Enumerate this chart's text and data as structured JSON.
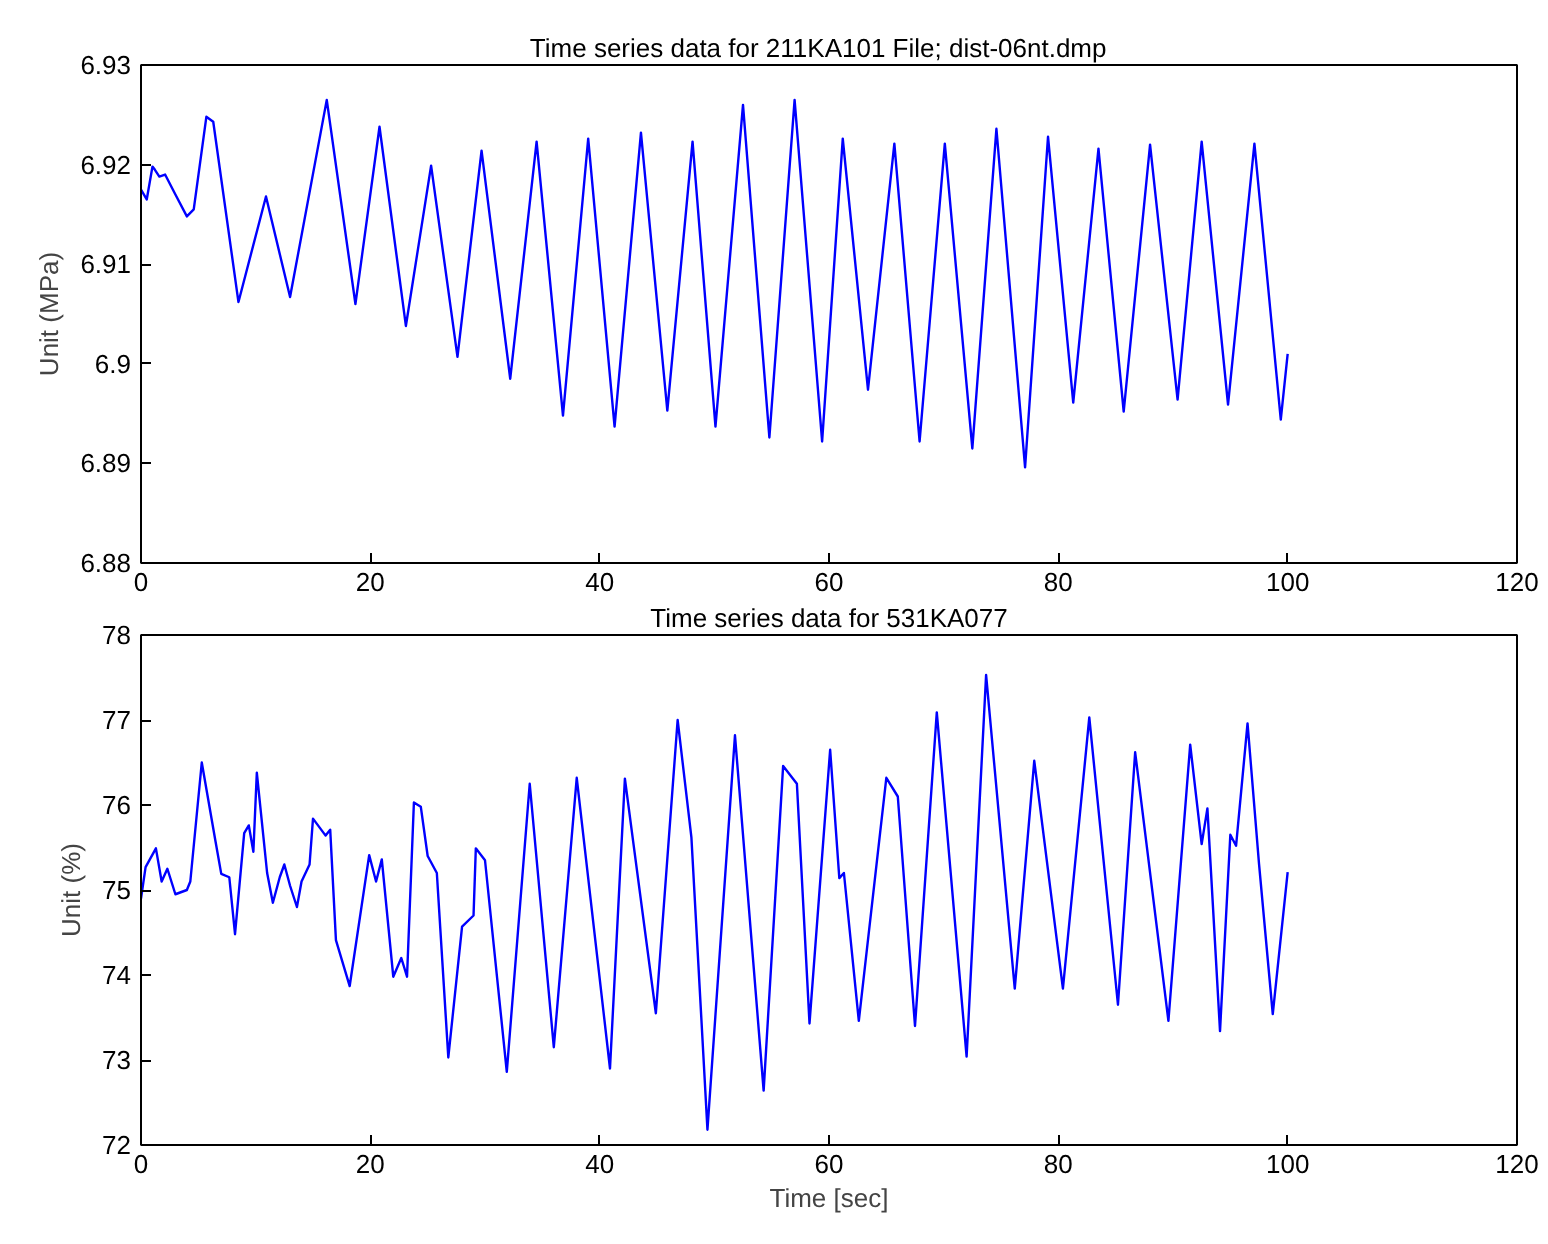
{
  "chart_data": [
    {
      "type": "line",
      "title": "Time series data for 211KA101    File; dist-06nt.dmp",
      "ylabel": "Unit (MPa)",
      "grid": false,
      "xlim": [
        0,
        120
      ],
      "xticks": [
        0,
        20,
        40,
        60,
        80,
        100,
        120
      ],
      "ylim": [
        6.88,
        6.93
      ],
      "yticks": [
        6.88,
        6.89,
        6.9,
        6.91,
        6.92,
        6.93
      ],
      "series": [
        {
          "color": "#0000ff",
          "x": [
            0,
            0.5,
            1,
            1.2,
            1.6,
            2.1,
            3,
            4,
            4.6,
            5.7,
            6.3,
            8.5,
            10.9,
            13.0,
            16.2,
            18.7,
            20.8,
            23.1,
            25.3,
            27.6,
            29.7,
            32.2,
            34.5,
            36.8,
            39.0,
            41.3,
            43.6,
            45.9,
            48.1,
            50.1,
            52.5,
            54.8,
            57.0,
            59.4,
            61.2,
            63.4,
            65.7,
            67.9,
            70.1,
            72.5,
            74.6,
            77.1,
            79.1,
            81.3,
            83.5,
            85.7,
            88.0,
            90.4,
            92.5,
            94.8,
            97.1,
            99.4,
            100
          ],
          "values": [
            6.9175,
            6.9165,
            6.9198,
            6.9195,
            6.9188,
            6.919,
            6.917,
            6.9148,
            6.9155,
            6.9248,
            6.9243,
            6.9062,
            6.9168,
            6.9067,
            6.9265,
            6.906,
            6.9238,
            6.9038,
            6.9199,
            6.9007,
            6.9214,
            6.8985,
            6.9223,
            6.8948,
            6.9226,
            6.8937,
            6.9232,
            6.8953,
            6.9223,
            6.8937,
            6.926,
            6.8926,
            6.9265,
            6.8922,
            6.9226,
            6.8974,
            6.9221,
            6.8922,
            6.9221,
            6.8915,
            6.9236,
            6.8896,
            6.9228,
            6.8961,
            6.9216,
            6.8952,
            6.922,
            6.8964,
            6.9223,
            6.8959,
            6.9221,
            6.8944,
            6.901
          ]
        }
      ]
    },
    {
      "type": "line",
      "title": "Time series data for 531KA077",
      "xlabel": "Time [sec]",
      "ylabel": "Unit (%)",
      "grid": false,
      "xlim": [
        0,
        120
      ],
      "xticks": [
        0,
        20,
        40,
        60,
        80,
        100,
        120
      ],
      "ylim": [
        72,
        78
      ],
      "yticks": [
        72,
        73,
        74,
        75,
        76,
        77,
        78
      ],
      "series": [
        {
          "color": "#0000ff",
          "x": [
            0,
            0.4,
            1.3,
            1.8,
            2.3,
            3.0,
            4.0,
            4.3,
            5.3,
            6.5,
            7.0,
            7.7,
            8.2,
            9.0,
            9.4,
            9.8,
            10.1,
            11.0,
            11.5,
            12.1,
            12.5,
            13.0,
            13.6,
            14.0,
            14.7,
            15.0,
            16.1,
            16.5,
            17.0,
            18.2,
            19.9,
            20.5,
            21.0,
            22.0,
            22.7,
            23.2,
            23.8,
            24.4,
            25.0,
            25.8,
            26.8,
            28.0,
            29.0,
            29.2,
            30.0,
            31.9,
            33.9,
            36.0,
            38.0,
            40.9,
            42.2,
            43.0,
            44.9,
            46.8,
            48.0,
            49.4,
            51.8,
            54.3,
            56.0,
            57.2,
            58.3,
            60.1,
            60.9,
            61.3,
            62.6,
            65.0,
            66.0,
            67.5,
            69.4,
            72.0,
            73.7,
            76.2,
            77.9,
            80.4,
            82.7,
            85.2,
            86.7,
            89.6,
            91.5,
            92.5,
            93.0,
            94.1,
            95.0,
            95.5,
            96.5,
            97.5,
            98.7,
            100
          ],
          "values": [
            74.9,
            75.27,
            75.49,
            75.1,
            75.25,
            74.95,
            75.0,
            75.1,
            76.5,
            75.57,
            75.19,
            75.15,
            74.48,
            75.67,
            75.76,
            75.45,
            76.38,
            75.2,
            74.85,
            75.15,
            75.3,
            75.05,
            74.8,
            75.1,
            75.3,
            75.84,
            75.64,
            75.71,
            74.41,
            73.87,
            75.41,
            75.1,
            75.36,
            73.98,
            74.2,
            73.98,
            76.03,
            75.98,
            75.4,
            75.2,
            73.03,
            74.57,
            74.7,
            75.49,
            75.35,
            72.86,
            76.25,
            73.15,
            76.32,
            72.9,
            76.31,
            75.49,
            73.55,
            77.0,
            75.62,
            72.18,
            76.82,
            72.64,
            76.46,
            76.25,
            73.43,
            76.65,
            75.14,
            75.2,
            73.46,
            76.32,
            76.1,
            73.4,
            77.09,
            73.04,
            77.53,
            73.84,
            76.52,
            73.84,
            77.03,
            73.65,
            76.62,
            73.46,
            76.71,
            75.54,
            75.96,
            73.34,
            75.65,
            75.52,
            76.96,
            75.31,
            73.54,
            75.21
          ]
        }
      ]
    }
  ]
}
